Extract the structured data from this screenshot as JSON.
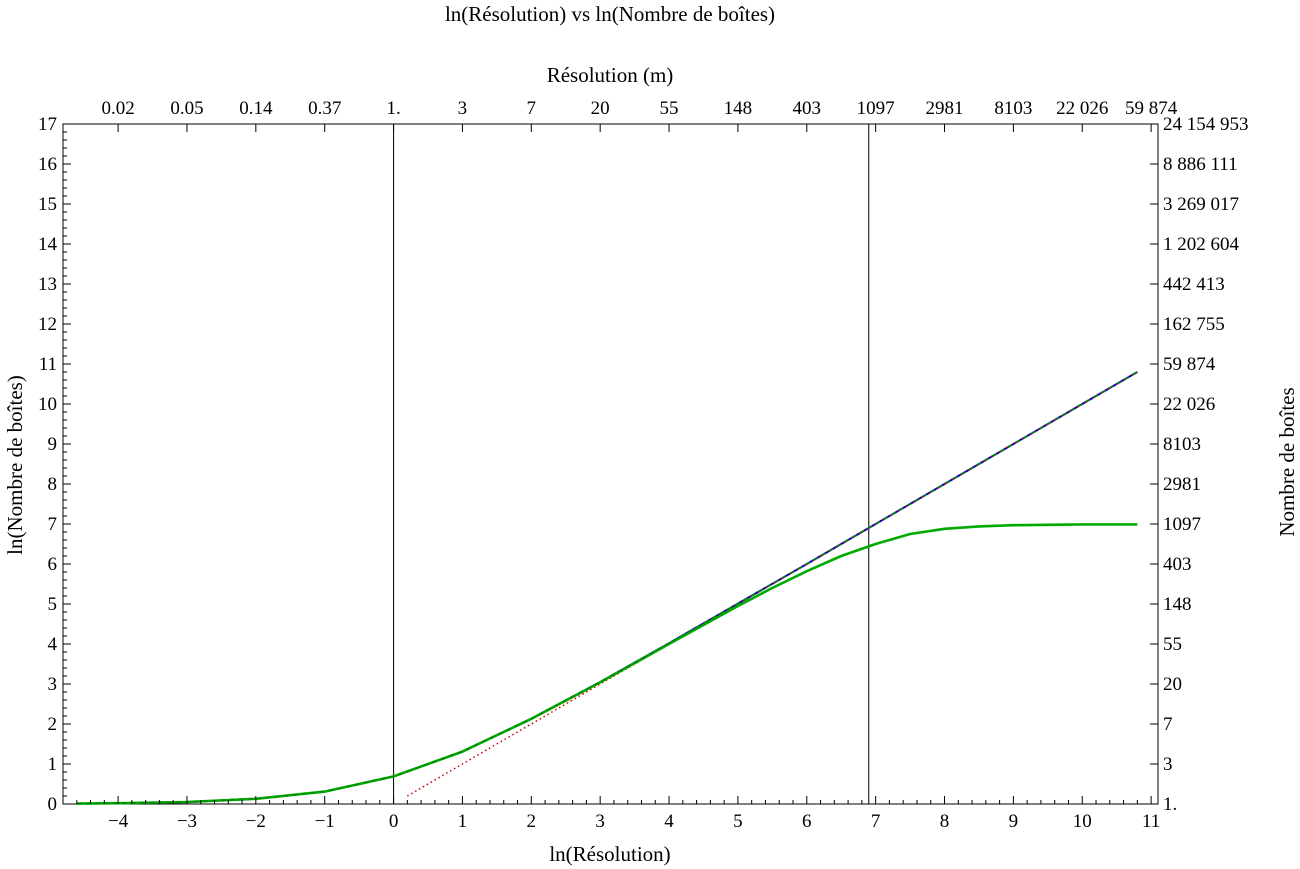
{
  "chart_data": {
    "type": "line",
    "title": "ln(Résolution) vs ln(Nombre de boîtes)",
    "xlabel": "ln(Résolution)",
    "ylabel": "ln(Nombre de boîtes)",
    "x2label": "Résolution (m)",
    "y2label": "Nombre de boîtes",
    "xlim": [
      -4.8,
      11.1
    ],
    "ylim": [
      0,
      17
    ],
    "x_ticks": [
      "−4",
      "−3",
      "−2",
      "−1",
      "0",
      "1",
      "2",
      "3",
      "4",
      "5",
      "6",
      "7",
      "8",
      "9",
      "10",
      "11"
    ],
    "x_tick_values": [
      -4,
      -3,
      -2,
      -1,
      0,
      1,
      2,
      3,
      4,
      5,
      6,
      7,
      8,
      9,
      10,
      11
    ],
    "y_ticks": [
      "0",
      "1",
      "2",
      "3",
      "4",
      "5",
      "6",
      "7",
      "8",
      "9",
      "10",
      "11",
      "12",
      "13",
      "14",
      "15",
      "16",
      "17"
    ],
    "top_ticks": [
      "0.02",
      "0.05",
      "0.14",
      "0.37",
      "1.",
      "3",
      "7",
      "20",
      "55",
      "148",
      "403",
      "1097",
      "2981",
      "8103",
      "22 026",
      "59 874"
    ],
    "right_ticks": [
      "1.",
      "3",
      "7",
      "20",
      "55",
      "148",
      "403",
      "1097",
      "2981",
      "8103",
      "22 026",
      "59 874",
      "162 755",
      "442 413",
      "1 202 604",
      "3 269 017",
      "8 886 111",
      "24 154 953"
    ],
    "vertical_lines": [
      0,
      6.9
    ],
    "series": [
      {
        "color": "#0000cc",
        "style": "solid",
        "x": [
          -4.6,
          -4,
          -3,
          -2,
          -1,
          0,
          1,
          2,
          3,
          4,
          5,
          6,
          7,
          8,
          9,
          10,
          10.8
        ],
        "y": [
          0.01,
          0.02,
          0.05,
          0.13,
          0.31,
          0.69,
          1.31,
          2.13,
          3.05,
          4.02,
          5.01,
          6.0,
          7.0,
          8.0,
          9.0,
          10.0,
          10.8
        ]
      },
      {
        "color": "#cc0000",
        "style": "dotted",
        "x": [
          0.2,
          1,
          2,
          3,
          4,
          5,
          6,
          7,
          8,
          9,
          10,
          10.8
        ],
        "y": [
          0.2,
          1.0,
          2.0,
          3.0,
          4.0,
          5.0,
          6.0,
          7.0,
          8.0,
          9.0,
          10.0,
          10.8
        ]
      },
      {
        "color": "#00aa00",
        "style": "solid",
        "x": [
          -4.6,
          -4,
          -3,
          -2,
          -1,
          0,
          1,
          2,
          3,
          4,
          5,
          5.5,
          6,
          6.5,
          7,
          7.5,
          8,
          8.5,
          9,
          9.5,
          10,
          10.8
        ],
        "y": [
          0.01,
          0.02,
          0.05,
          0.13,
          0.31,
          0.69,
          1.31,
          2.13,
          3.04,
          4.0,
          4.95,
          5.4,
          5.82,
          6.2,
          6.5,
          6.75,
          6.88,
          6.94,
          6.97,
          6.98,
          6.99,
          6.99
        ]
      },
      {
        "color": "#008800",
        "style": "dashed",
        "x": [
          -4.6,
          -4,
          -3,
          -2,
          -1,
          0,
          1,
          2,
          3,
          4,
          5,
          6,
          7,
          8,
          9,
          10,
          10.8
        ],
        "y": [
          0.01,
          0.02,
          0.05,
          0.13,
          0.31,
          0.69,
          1.31,
          2.13,
          3.05,
          4.02,
          5.01,
          6.0,
          7.0,
          8.0,
          9.0,
          10.0,
          10.8
        ]
      }
    ]
  }
}
